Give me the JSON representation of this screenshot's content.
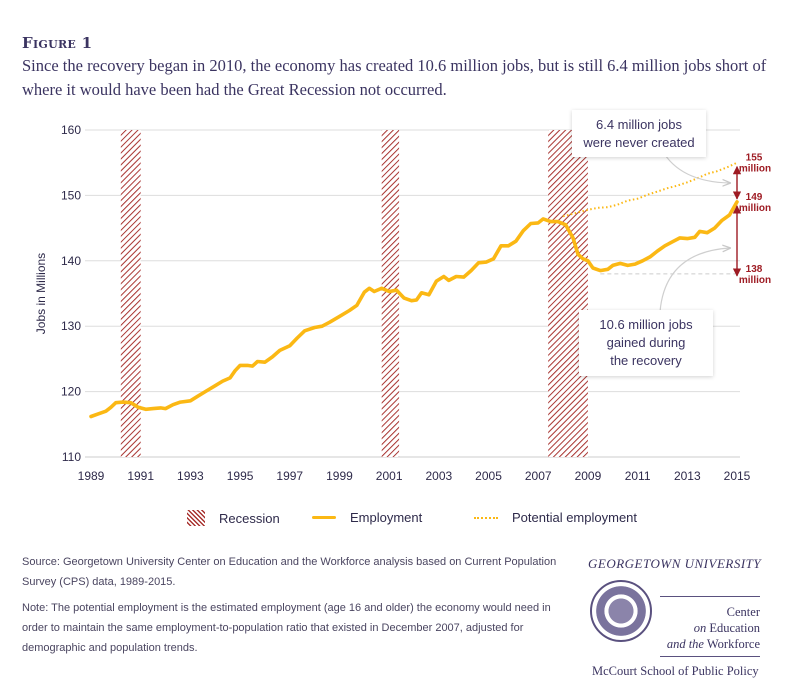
{
  "figure": {
    "label": "Figure 1",
    "title": "Since the recovery began in 2010, the economy has created 10.6 million jobs, but is still 6.4 million jobs short of where it would have been had the Great Recession not occurred."
  },
  "annotations": {
    "callout_gap": [
      "6.4 million jobs",
      "were never created"
    ],
    "callout_gain": [
      "10.6 million jobs",
      "gained during",
      "the recovery"
    ],
    "end_labels": [
      {
        "value": 155,
        "line1": "155",
        "line2": "million"
      },
      {
        "value": 149,
        "line1": "149",
        "line2": "million"
      },
      {
        "value": 138,
        "line1": "138",
        "line2": "million"
      }
    ]
  },
  "legend": {
    "recession": "Recession",
    "employment": "Employment",
    "potential": "Potential employment"
  },
  "colors": {
    "employment": "#fbb814",
    "recession": "#a8322f",
    "annotation": "#9e1b23",
    "text": "#3b3461",
    "grid": "#dddddd"
  },
  "source": "Source: Georgetown University Center on Education and the Workforce analysis based on Current Population Survey (CPS) data, 1989-2015.",
  "note": "Note: The potential employment is the estimated employment (age 16 and older) the economy would need in order to maintain the same employment-to-population ratio that existed in December 2007, adjusted for demographic and population trends.",
  "logo": {
    "university": "GEORGETOWN UNIVERSITY",
    "center_line1": "Center",
    "center_line2_italic": "on",
    "center_line2": " Education",
    "center_line3_italic": "and the",
    "center_line3": " Workforce",
    "school": "McCourt School of Public Policy"
  },
  "chart_data": {
    "type": "line",
    "title": "",
    "xlabel": "",
    "ylabel": "Jobs in Millions",
    "xlim": [
      1989,
      2015
    ],
    "ylim": [
      110,
      160
    ],
    "xticks": [
      1989,
      1991,
      1993,
      1995,
      1997,
      1999,
      2001,
      2003,
      2005,
      2007,
      2009,
      2011,
      2013,
      2015
    ],
    "yticks": [
      110,
      120,
      130,
      140,
      150,
      160
    ],
    "grid": "horizontal",
    "legend_position": "bottom",
    "recessions": [
      [
        1990.2,
        1991.0
      ],
      [
        2000.7,
        2001.4
      ],
      [
        2007.4,
        2009.0
      ]
    ],
    "series": [
      {
        "name": "Employment",
        "style": "solid",
        "points": [
          [
            1989.0,
            116.2
          ],
          [
            1989.3,
            116.6
          ],
          [
            1989.6,
            117.0
          ],
          [
            1989.8,
            117.6
          ],
          [
            1990.0,
            118.3
          ],
          [
            1990.3,
            118.4
          ],
          [
            1990.6,
            118.3
          ],
          [
            1990.9,
            117.6
          ],
          [
            1991.2,
            117.3
          ],
          [
            1991.5,
            117.4
          ],
          [
            1991.8,
            117.5
          ],
          [
            1992.0,
            117.4
          ],
          [
            1992.3,
            118.0
          ],
          [
            1992.6,
            118.4
          ],
          [
            1993.0,
            118.6
          ],
          [
            1993.3,
            119.3
          ],
          [
            1993.6,
            120.0
          ],
          [
            1994.0,
            120.9
          ],
          [
            1994.3,
            121.6
          ],
          [
            1994.6,
            122.1
          ],
          [
            1994.8,
            123.2
          ],
          [
            1995.0,
            124.0
          ],
          [
            1995.3,
            124.0
          ],
          [
            1995.5,
            123.9
          ],
          [
            1995.7,
            124.6
          ],
          [
            1996.0,
            124.5
          ],
          [
            1996.3,
            125.3
          ],
          [
            1996.6,
            126.3
          ],
          [
            1997.0,
            127.0
          ],
          [
            1997.3,
            128.2
          ],
          [
            1997.6,
            129.3
          ],
          [
            1998.0,
            129.8
          ],
          [
            1998.3,
            130.0
          ],
          [
            1998.6,
            130.6
          ],
          [
            1999.0,
            131.5
          ],
          [
            1999.4,
            132.4
          ],
          [
            1999.7,
            133.2
          ],
          [
            2000.0,
            135.2
          ],
          [
            2000.2,
            135.8
          ],
          [
            2000.4,
            135.3
          ],
          [
            2000.7,
            135.8
          ],
          [
            2001.0,
            135.3
          ],
          [
            2001.3,
            135.5
          ],
          [
            2001.6,
            134.3
          ],
          [
            2001.9,
            133.9
          ],
          [
            2002.1,
            134.0
          ],
          [
            2002.3,
            135.1
          ],
          [
            2002.6,
            134.8
          ],
          [
            2002.9,
            136.9
          ],
          [
            2003.2,
            137.6
          ],
          [
            2003.4,
            137.0
          ],
          [
            2003.7,
            137.6
          ],
          [
            2004.0,
            137.5
          ],
          [
            2004.3,
            138.5
          ],
          [
            2004.6,
            139.7
          ],
          [
            2004.9,
            139.8
          ],
          [
            2005.2,
            140.3
          ],
          [
            2005.5,
            142.3
          ],
          [
            2005.8,
            142.3
          ],
          [
            2006.1,
            143.0
          ],
          [
            2006.4,
            144.6
          ],
          [
            2006.7,
            145.7
          ],
          [
            2007.0,
            145.8
          ],
          [
            2007.2,
            146.4
          ],
          [
            2007.5,
            146.0
          ],
          [
            2007.8,
            146.0
          ],
          [
            2008.1,
            145.5
          ],
          [
            2008.4,
            143.5
          ],
          [
            2008.6,
            141.0
          ],
          [
            2008.8,
            140.3
          ],
          [
            2009.0,
            140.0
          ],
          [
            2009.2,
            138.9
          ],
          [
            2009.5,
            138.5
          ],
          [
            2009.8,
            138.7
          ],
          [
            2010.0,
            139.3
          ],
          [
            2010.3,
            139.6
          ],
          [
            2010.6,
            139.3
          ],
          [
            2010.9,
            139.5
          ],
          [
            2011.2,
            140.0
          ],
          [
            2011.5,
            140.6
          ],
          [
            2011.8,
            141.5
          ],
          [
            2012.1,
            142.3
          ],
          [
            2012.4,
            142.9
          ],
          [
            2012.7,
            143.5
          ],
          [
            2013.0,
            143.4
          ],
          [
            2013.3,
            143.6
          ],
          [
            2013.5,
            144.5
          ],
          [
            2013.8,
            144.3
          ],
          [
            2014.1,
            145.0
          ],
          [
            2014.4,
            146.2
          ],
          [
            2014.7,
            147.0
          ],
          [
            2015.0,
            149.0
          ]
        ]
      },
      {
        "name": "Potential employment",
        "style": "dotted",
        "points": [
          [
            2008.0,
            146.8
          ],
          [
            2008.5,
            147.3
          ],
          [
            2009.0,
            147.8
          ],
          [
            2009.4,
            148.1
          ],
          [
            2009.8,
            148.2
          ],
          [
            2010.2,
            148.6
          ],
          [
            2010.6,
            149.2
          ],
          [
            2011.0,
            149.5
          ],
          [
            2011.4,
            150.1
          ],
          [
            2011.8,
            150.6
          ],
          [
            2012.2,
            151.1
          ],
          [
            2012.6,
            151.5
          ],
          [
            2013.0,
            152.0
          ],
          [
            2013.4,
            152.6
          ],
          [
            2013.8,
            153.3
          ],
          [
            2014.2,
            153.7
          ],
          [
            2014.6,
            154.3
          ],
          [
            2015.0,
            155.0
          ]
        ]
      }
    ],
    "reference_lines": [
      {
        "label": "138 million",
        "value": 138,
        "from": 2009.5,
        "to": 2015
      }
    ]
  }
}
